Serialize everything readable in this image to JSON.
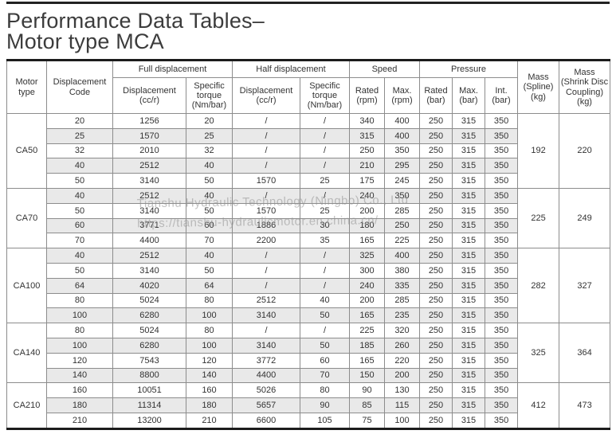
{
  "page": {
    "title_line1": "Performance Data Tables–",
    "title_line2": "Motor type MCA"
  },
  "watermark": {
    "line1": "Tianshu Hydraulic Technology (Ningbo) Co., Ltd",
    "line2": "https://tianshu-hydraulicmotor.en.china.cn/"
  },
  "colors": {
    "row_shade": "#e9e9e9",
    "grid_border": "#8c8c8c",
    "heavy_border": "#1c1c1c",
    "text": "#333333",
    "watermark_text": "#919191"
  },
  "table": {
    "headers": {
      "motor_type": "Motor\ntype",
      "displacement_code": "Displacement\nCode",
      "full_displacement": "Full displacement",
      "half_displacement": "Half displacement",
      "speed": "Speed",
      "pressure": "Pressure",
      "displacement_ccr": "Displacement\n(cc/r)",
      "specific_torque": "Specific\ntorque\n(Nm/bar)",
      "speed_rated": "Rated\n(rpm)",
      "speed_max": "Max.\n(rpm)",
      "pressure_rated": "Rated\n(bar)",
      "pressure_max": "Max.\n(bar)",
      "pressure_int": "Int.\n(bar)",
      "mass_spline": "Mass\n(Spline)\n(kg)",
      "mass_shrink": "Mass\n(Shrink Disc\nCoupling)\n(kg)"
    },
    "groups": [
      {
        "motor_type": "CA50",
        "mass_spline": "192",
        "mass_shrink": "220",
        "rows": [
          [
            "20",
            "1256",
            "20",
            "/",
            "/",
            "340",
            "400",
            "250",
            "315",
            "350"
          ],
          [
            "25",
            "1570",
            "25",
            "/",
            "/",
            "315",
            "400",
            "250",
            "315",
            "350"
          ],
          [
            "32",
            "2010",
            "32",
            "/",
            "/",
            "250",
            "350",
            "250",
            "315",
            "350"
          ],
          [
            "40",
            "2512",
            "40",
            "/",
            "/",
            "210",
            "295",
            "250",
            "315",
            "350"
          ],
          [
            "50",
            "3140",
            "50",
            "1570",
            "25",
            "175",
            "245",
            "250",
            "315",
            "350"
          ]
        ]
      },
      {
        "motor_type": "CA70",
        "mass_spline": "225",
        "mass_shrink": "249",
        "rows": [
          [
            "40",
            "2512",
            "40",
            "/",
            "/",
            "240",
            "350",
            "250",
            "315",
            "350"
          ],
          [
            "50",
            "3140",
            "50",
            "1570",
            "25",
            "200",
            "285",
            "250",
            "315",
            "350"
          ],
          [
            "60",
            "3771",
            "60",
            "1886",
            "30",
            "180",
            "250",
            "250",
            "315",
            "350"
          ],
          [
            "70",
            "4400",
            "70",
            "2200",
            "35",
            "165",
            "225",
            "250",
            "315",
            "350"
          ]
        ]
      },
      {
        "motor_type": "CA100",
        "mass_spline": "282",
        "mass_shrink": "327",
        "rows": [
          [
            "40",
            "2512",
            "40",
            "/",
            "/",
            "325",
            "400",
            "250",
            "315",
            "350"
          ],
          [
            "50",
            "3140",
            "50",
            "/",
            "/",
            "300",
            "380",
            "250",
            "315",
            "350"
          ],
          [
            "64",
            "4020",
            "64",
            "/",
            "/",
            "240",
            "335",
            "250",
            "315",
            "350"
          ],
          [
            "80",
            "5024",
            "80",
            "2512",
            "40",
            "200",
            "285",
            "250",
            "315",
            "350"
          ],
          [
            "100",
            "6280",
            "100",
            "3140",
            "50",
            "165",
            "235",
            "250",
            "315",
            "350"
          ]
        ]
      },
      {
        "motor_type": "CA140",
        "mass_spline": "325",
        "mass_shrink": "364",
        "rows": [
          [
            "80",
            "5024",
            "80",
            "/",
            "/",
            "225",
            "320",
            "250",
            "315",
            "350"
          ],
          [
            "100",
            "6280",
            "100",
            "3140",
            "50",
            "185",
            "260",
            "250",
            "315",
            "350"
          ],
          [
            "120",
            "7543",
            "120",
            "3772",
            "60",
            "165",
            "220",
            "250",
            "315",
            "350"
          ],
          [
            "140",
            "8800",
            "140",
            "4400",
            "70",
            "150",
            "200",
            "250",
            "315",
            "350"
          ]
        ]
      },
      {
        "motor_type": "CA210",
        "mass_spline": "412",
        "mass_shrink": "473",
        "rows": [
          [
            "160",
            "10051",
            "160",
            "5026",
            "80",
            "90",
            "130",
            "250",
            "315",
            "350"
          ],
          [
            "180",
            "11314",
            "180",
            "5657",
            "90",
            "85",
            "115",
            "250",
            "315",
            "350"
          ],
          [
            "210",
            "13200",
            "210",
            "6600",
            "105",
            "75",
            "100",
            "250",
            "315",
            "350"
          ]
        ]
      }
    ]
  }
}
